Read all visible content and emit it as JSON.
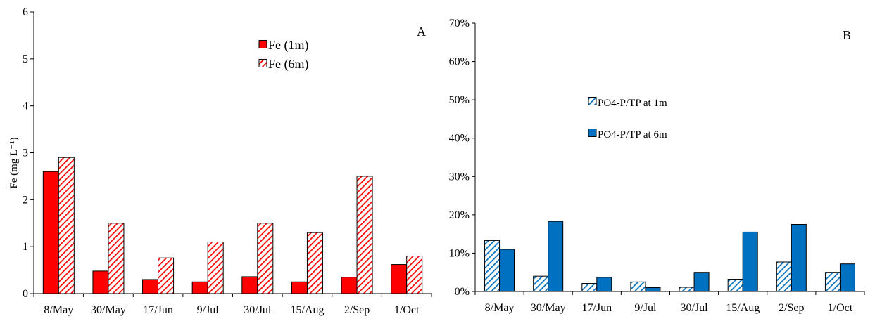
{
  "chart_data": [
    {
      "type": "bar",
      "panel_label": "A",
      "ylabel": "Fe (mg L⁻¹)",
      "ylim": [
        0,
        6
      ],
      "yticks": [
        0,
        1,
        2,
        3,
        4,
        5,
        6
      ],
      "ytick_labels": [
        "0",
        "1",
        "2",
        "3",
        "4",
        "5",
        "6"
      ],
      "categories": [
        "8/May",
        "30/May",
        "17/Jun",
        "9/Jul",
        "30/Jul",
        "15/Aug",
        "2/Sep",
        "1/Oct"
      ],
      "series": [
        {
          "name": "Fe (1m)",
          "values": [
            2.6,
            0.48,
            0.3,
            0.25,
            0.36,
            0.25,
            0.35,
            0.62
          ],
          "color": "#ff0000",
          "pattern": "solid"
        },
        {
          "name": "Fe (6m)",
          "values": [
            2.9,
            1.5,
            0.76,
            1.1,
            1.5,
            1.3,
            2.5,
            0.8
          ],
          "color": "#ff0000",
          "pattern": "hatched"
        }
      ],
      "legend_position": "top-right"
    },
    {
      "type": "bar",
      "panel_label": "B",
      "ylabel": "",
      "ylim": [
        0,
        70
      ],
      "yticks": [
        0,
        10,
        20,
        30,
        40,
        50,
        60,
        70
      ],
      "ytick_labels": [
        "0%",
        "10%",
        "20%",
        "30%",
        "40%",
        "50%",
        "60%",
        "70%"
      ],
      "categories": [
        "8/May",
        "30/May",
        "17/Jun",
        "9/Jul",
        "30/Jul",
        "15/Aug",
        "2/Sep",
        "1/Oct"
      ],
      "series": [
        {
          "name": "PO4-P/TP at 1m",
          "values": [
            13.3,
            4.0,
            2.1,
            2.5,
            1.1,
            3.2,
            7.7,
            5.0
          ],
          "color": "#0070c0",
          "pattern": "hatched"
        },
        {
          "name": "PO4-P/TP at 6m",
          "values": [
            11.0,
            18.3,
            3.7,
            1.0,
            5.0,
            15.5,
            17.5,
            7.2
          ],
          "color": "#0070c0",
          "pattern": "solid"
        }
      ],
      "legend_position": "top-right"
    }
  ]
}
